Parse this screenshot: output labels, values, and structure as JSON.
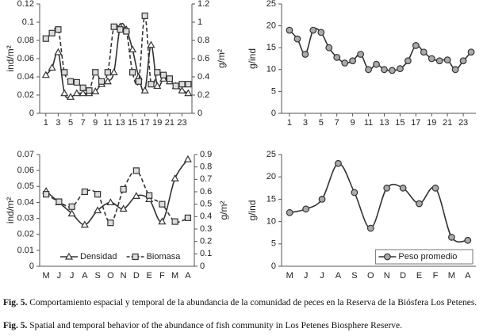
{
  "chart_data": [
    {
      "type": "line",
      "x": [
        1,
        2,
        3,
        4,
        5,
        6,
        7,
        8,
        9,
        10,
        11,
        12,
        13,
        14,
        15,
        16,
        17,
        18,
        19,
        20,
        21,
        22,
        23,
        24
      ],
      "xlim": [
        0,
        24.6
      ],
      "xticks": [
        1,
        3,
        5,
        7,
        9,
        11,
        13,
        15,
        17,
        19,
        21,
        23
      ],
      "ylabel": "ind/m²",
      "ylim": [
        0,
        0.12
      ],
      "yticks": [
        0,
        0.02,
        0.04,
        0.06,
        0.08,
        0.1,
        0.12
      ],
      "y2label": "g/m²",
      "y2lim": [
        0,
        1.2
      ],
      "y2ticks": [
        0,
        0.2,
        0.4,
        0.6,
        0.8,
        1,
        1.2
      ],
      "series": [
        {
          "color": "#333333",
          "marker": "triangle",
          "dash": "solid",
          "values": [
            0.042,
            0.05,
            0.067,
            0.022,
            0.018,
            0.022,
            0.022,
            0.022,
            0.024,
            0.032,
            0.035,
            0.045,
            0.095,
            0.092,
            0.07,
            0.04,
            0.025,
            0.075,
            0.03,
            0.038,
            0.035,
            0.03,
            0.025,
            0.022
          ]
        },
        {
          "color": "#333333",
          "marker": "square",
          "dash": "dashed",
          "axis": "y2",
          "values": [
            0.82,
            0.88,
            0.92,
            0.45,
            0.35,
            0.34,
            0.28,
            0.25,
            0.45,
            0.35,
            0.45,
            0.95,
            0.92,
            0.9,
            0.45,
            0.35,
            1.07,
            0.32,
            0.45,
            0.42,
            0.38,
            0.3,
            0.32,
            0.32
          ]
        }
      ]
    },
    {
      "type": "line",
      "x": [
        1,
        2,
        3,
        4,
        5,
        6,
        7,
        8,
        9,
        10,
        11,
        12,
        13,
        14,
        15,
        16,
        17,
        18,
        19,
        20,
        21,
        22,
        23,
        24
      ],
      "xlim": [
        0,
        24.6
      ],
      "xticks": [
        1,
        3,
        5,
        7,
        9,
        11,
        13,
        15,
        17,
        19,
        21,
        23
      ],
      "ylabel": "g/ind",
      "ylim": [
        0,
        25
      ],
      "yticks": [
        0,
        5,
        10,
        15,
        20,
        25
      ],
      "series": [
        {
          "color": "#333333",
          "marker": "circle",
          "dash": "solid",
          "values": [
            19,
            17,
            13.5,
            19,
            18.5,
            15,
            12.8,
            11.5,
            12,
            13.5,
            10,
            11.2,
            10,
            9.8,
            10.2,
            12,
            15.5,
            14,
            12.5,
            12,
            12.2,
            10,
            12,
            14
          ]
        }
      ]
    },
    {
      "type": "line",
      "categories": [
        "M",
        "J",
        "J",
        "A",
        "S",
        "O",
        "N",
        "D",
        "E",
        "F",
        "M",
        "A"
      ],
      "ylabel": "ind/m²",
      "ylim": [
        0,
        0.07
      ],
      "yticks": [
        0,
        0.01,
        0.02,
        0.03,
        0.04,
        0.05,
        0.06,
        0.07
      ],
      "y2label": "g/m²",
      "y2lim": [
        0,
        0.9
      ],
      "y2ticks": [
        0,
        0.1,
        0.2,
        0.3,
        0.4,
        0.5,
        0.6,
        0.7,
        0.8,
        0.9
      ],
      "legend": "lower right",
      "series": [
        {
          "name": "Densidad",
          "color": "#333333",
          "marker": "triangle",
          "dash": "solid",
          "values": [
            0.047,
            0.04,
            0.033,
            0.026,
            0.035,
            0.04,
            0.036,
            0.044,
            0.042,
            0.028,
            0.055,
            0.067
          ]
        },
        {
          "name": "Biomasa",
          "color": "#333333",
          "marker": "square",
          "dash": "dashed",
          "axis": "y2",
          "values": [
            0.58,
            0.52,
            0.48,
            0.6,
            0.58,
            0.35,
            0.62,
            0.77,
            0.57,
            0.5,
            0.36,
            0.39
          ]
        }
      ]
    },
    {
      "type": "line",
      "categories": [
        "M",
        "J",
        "J",
        "A",
        "S",
        "O",
        "N",
        "D",
        "E",
        "F",
        "M",
        "A"
      ],
      "ylabel": "g/ind",
      "ylim": [
        0,
        25
      ],
      "yticks": [
        0,
        5,
        10,
        15,
        20,
        25
      ],
      "legend": "lower right",
      "series": [
        {
          "name": "Peso promedio",
          "color": "#333333",
          "marker": "circle",
          "dash": "solid",
          "values": [
            12,
            12.8,
            15,
            23,
            16.5,
            8.5,
            17.5,
            17.5,
            14,
            17.5,
            6.5,
            5.8
          ]
        }
      ]
    }
  ],
  "captions": [
    {
      "label": "Fig. 5.",
      "text": "Comportamiento espacial y temporal de la abundancia de la comunidad de peces en la Reserva de la Biósfera Los Petenes."
    },
    {
      "label": "Fig. 5.",
      "text": "Spatial and temporal behavior of the abundance of fish community in Los Petenes Biosphere Reserve."
    }
  ]
}
